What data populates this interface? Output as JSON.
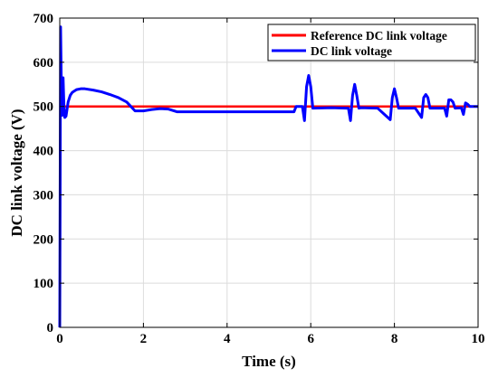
{
  "chart_data": {
    "type": "line",
    "xlabel": "Time (s)",
    "ylabel": "DC link voltage (V)",
    "xlim": [
      0,
      10
    ],
    "ylim": [
      0,
      700
    ],
    "xticks": [
      0,
      2,
      4,
      6,
      8,
      10
    ],
    "yticks": [
      0,
      100,
      200,
      300,
      400,
      500,
      600,
      700
    ],
    "grid": true,
    "legend_position": "top-right",
    "series": [
      {
        "name": "Reference DC link voltage",
        "color": "#ff0000",
        "x": [
          0,
          10
        ],
        "y": [
          500,
          500
        ]
      },
      {
        "name": "DC link voltage",
        "color": "#0000ff",
        "x": [
          0,
          0.02,
          0.04,
          0.06,
          0.08,
          0.1,
          0.12,
          0.15,
          0.2,
          0.25,
          0.3,
          0.4,
          0.5,
          0.6,
          0.8,
          1.0,
          1.2,
          1.4,
          1.6,
          1.8,
          2.0,
          2.2,
          2.4,
          2.6,
          2.8,
          3.0,
          4.0,
          5.0,
          5.6,
          5.65,
          5.7,
          5.8,
          5.85,
          5.9,
          5.95,
          6.0,
          6.05,
          6.5,
          6.9,
          6.95,
          7.0,
          7.05,
          7.1,
          7.15,
          7.2,
          7.6,
          7.9,
          7.95,
          8.0,
          8.05,
          8.1,
          8.5,
          8.65,
          8.7,
          8.75,
          8.8,
          8.85,
          9.2,
          9.25,
          9.3,
          9.35,
          9.4,
          9.45,
          9.6,
          9.65,
          9.7,
          9.75,
          9.8,
          10.0
        ],
        "y": [
          0,
          680,
          530,
          480,
          565,
          500,
          475,
          478,
          510,
          525,
          532,
          538,
          540,
          540,
          537,
          533,
          527,
          520,
          510,
          490,
          490,
          493,
          495,
          494,
          488,
          488,
          488,
          488,
          488,
          500,
          500,
          500,
          468,
          545,
          570,
          545,
          496,
          497,
          496,
          468,
          525,
          550,
          525,
          496,
          497,
          496,
          470,
          520,
          540,
          520,
          496,
          496,
          475,
          520,
          527,
          520,
          496,
          496,
          478,
          515,
          515,
          510,
          496,
          497,
          482,
          508,
          505,
          500,
          500
        ]
      }
    ]
  }
}
